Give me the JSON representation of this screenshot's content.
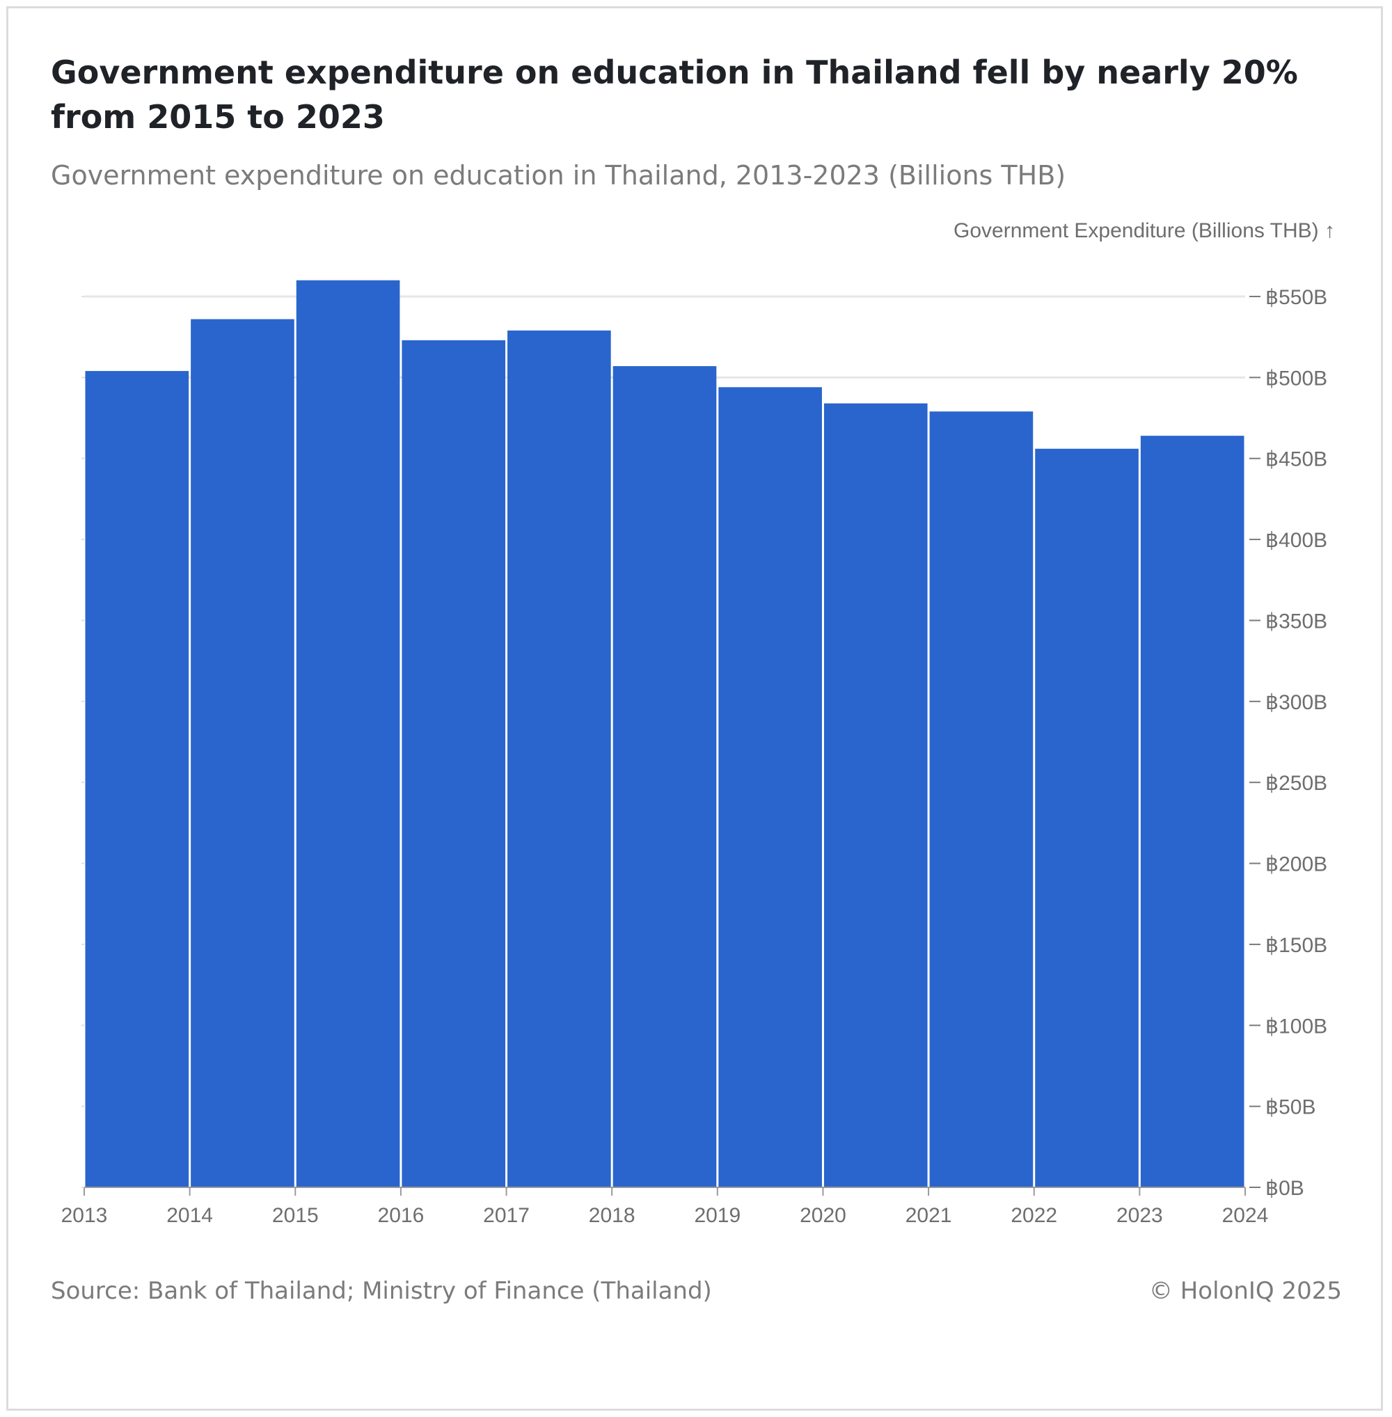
{
  "title": "Government expenditure on education in Thailand fell by nearly 20% from 2015 to 2023",
  "subtitle": "Government expenditure on education in Thailand, 2013-2023 (Billions THB)",
  "source": "Source: Bank of Thailand; Ministry of Finance (Thailand)",
  "copyright": "© HolonIQ 2025",
  "colors": {
    "bar": "#2a65cd",
    "grid": "#e6e6e6",
    "axis": "#9a9a9a",
    "text": "#6e6e6e"
  },
  "chart_data": {
    "type": "bar",
    "title": "Government expenditure on education in Thailand fell by nearly 20% from 2015 to 2023",
    "subtitle": "Government expenditure on education in Thailand, 2013-2023 (Billions THB)",
    "ylabel": "Government Expenditure (Billions THB) ↑",
    "xlabel": "",
    "y_axis_position": "right",
    "x_ticks": [
      "2013",
      "2014",
      "2015",
      "2016",
      "2017",
      "2018",
      "2019",
      "2020",
      "2021",
      "2022",
      "2023",
      "2024"
    ],
    "y_ticks": [
      {
        "value": 0,
        "label": "฿0B"
      },
      {
        "value": 50,
        "label": "฿50B"
      },
      {
        "value": 100,
        "label": "฿100B"
      },
      {
        "value": 150,
        "label": "฿150B"
      },
      {
        "value": 200,
        "label": "฿200B"
      },
      {
        "value": 250,
        "label": "฿250B"
      },
      {
        "value": 300,
        "label": "฿300B"
      },
      {
        "value": 350,
        "label": "฿350B"
      },
      {
        "value": 400,
        "label": "฿400B"
      },
      {
        "value": 450,
        "label": "฿450B"
      },
      {
        "value": 500,
        "label": "฿500B"
      },
      {
        "value": 550,
        "label": "฿550B"
      }
    ],
    "ylim": [
      0,
      550
    ],
    "grid": "horizontal, at 500 and 550",
    "categories": [
      "2013",
      "2014",
      "2015",
      "2016",
      "2017",
      "2018",
      "2019",
      "2020",
      "2021",
      "2022",
      "2023"
    ],
    "values": [
      504,
      536,
      560,
      523,
      529,
      507,
      494,
      484,
      479,
      456,
      464
    ]
  }
}
